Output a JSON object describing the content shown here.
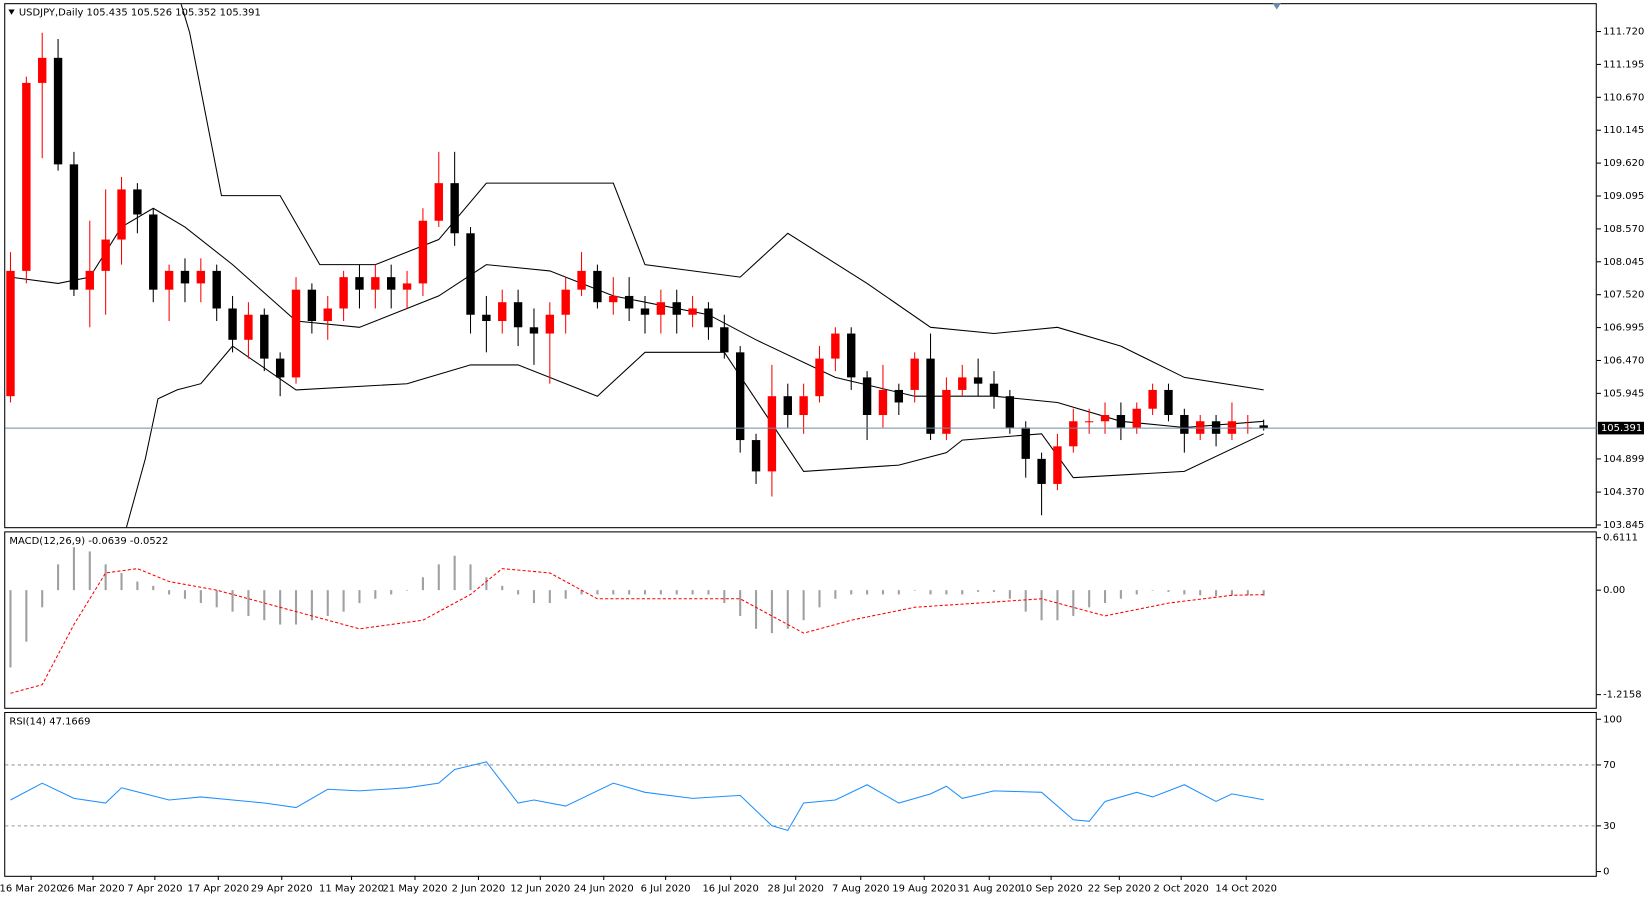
{
  "chart_data": [
    {
      "type": "candlestick",
      "title": "USDJPY,Daily  105.435 105.526 105.352 105.391",
      "up_color": "#ff0000",
      "down_color": "#000000",
      "open": [
        105.9,
        107.9,
        110.9,
        111.3,
        109.6,
        107.6,
        107.9,
        108.4,
        109.2,
        108.8,
        107.6,
        107.9,
        107.7,
        107.9,
        107.3,
        106.8,
        107.2,
        106.5,
        106.2,
        107.6,
        107.1,
        107.3,
        107.8,
        107.6,
        107.8,
        107.6,
        107.7,
        108.7,
        109.3,
        108.5,
        107.2,
        107.1,
        107.4,
        107.0,
        106.9,
        107.2,
        107.6,
        107.9,
        107.4,
        107.5,
        107.3,
        107.2,
        107.4,
        107.2,
        107.3,
        107.0,
        106.6,
        105.2,
        104.7,
        105.9,
        105.6,
        105.9,
        106.5,
        106.9,
        106.2,
        105.6,
        106.0,
        106.0,
        106.5,
        105.3,
        106.0,
        106.2,
        106.1,
        105.9,
        105.4,
        104.9,
        104.5,
        105.1,
        105.5,
        105.5,
        105.6,
        105.4,
        105.7,
        106.0,
        105.6,
        105.3,
        105.5,
        105.3,
        105.4,
        105.435
      ],
      "high": [
        108.2,
        111.0,
        111.7,
        111.6,
        109.8,
        108.7,
        109.2,
        109.4,
        109.3,
        108.9,
        108.0,
        108.1,
        108.1,
        108.0,
        107.5,
        107.4,
        107.3,
        106.6,
        107.8,
        107.7,
        107.5,
        107.9,
        108.0,
        108.0,
        108.0,
        107.9,
        108.9,
        109.8,
        109.8,
        108.6,
        107.5,
        107.6,
        107.6,
        107.3,
        107.4,
        107.8,
        108.2,
        108.0,
        107.8,
        107.8,
        107.5,
        107.6,
        107.6,
        107.5,
        107.4,
        107.2,
        106.7,
        105.3,
        106.4,
        106.1,
        106.1,
        106.7,
        107.0,
        107.0,
        106.3,
        106.4,
        106.1,
        106.6,
        106.9,
        106.2,
        106.4,
        106.5,
        106.3,
        106.0,
        105.5,
        105.0,
        105.3,
        105.7,
        105.7,
        105.8,
        105.8,
        105.8,
        106.1,
        106.1,
        105.7,
        105.6,
        105.6,
        105.8,
        105.6,
        105.526
      ],
      "low": [
        105.8,
        107.7,
        109.7,
        109.5,
        107.5,
        107.0,
        107.2,
        108.0,
        108.5,
        107.4,
        107.1,
        107.4,
        107.4,
        107.1,
        106.6,
        106.5,
        106.3,
        105.9,
        106.1,
        106.9,
        106.8,
        107.1,
        107.3,
        107.3,
        107.3,
        107.3,
        107.5,
        108.6,
        108.3,
        106.9,
        106.6,
        106.9,
        106.7,
        106.4,
        106.1,
        106.9,
        107.5,
        107.3,
        107.2,
        107.1,
        106.9,
        106.9,
        106.9,
        107.0,
        106.8,
        106.5,
        105.0,
        104.5,
        104.3,
        105.4,
        105.3,
        105.8,
        106.3,
        106.0,
        105.2,
        105.4,
        105.6,
        105.8,
        105.2,
        105.2,
        105.9,
        105.9,
        105.7,
        105.3,
        104.6,
        104.0,
        104.4,
        105.0,
        105.3,
        105.3,
        105.2,
        105.3,
        105.6,
        105.5,
        105.0,
        105.2,
        105.1,
        105.2,
        105.3,
        105.352
      ],
      "close": [
        107.9,
        110.9,
        111.3,
        109.6,
        107.6,
        107.9,
        108.4,
        109.2,
        108.8,
        107.6,
        107.9,
        107.7,
        107.9,
        107.3,
        106.8,
        107.2,
        106.5,
        106.2,
        107.6,
        107.1,
        107.3,
        107.8,
        107.6,
        107.8,
        107.6,
        107.7,
        108.7,
        109.3,
        108.5,
        107.2,
        107.1,
        107.4,
        107.0,
        106.9,
        107.2,
        107.6,
        107.9,
        107.4,
        107.5,
        107.3,
        107.2,
        107.4,
        107.2,
        107.3,
        107.0,
        106.6,
        105.2,
        104.7,
        105.9,
        105.6,
        105.9,
        106.5,
        106.9,
        106.2,
        105.6,
        106.0,
        105.8,
        106.5,
        105.3,
        106.0,
        106.2,
        106.1,
        105.9,
        105.4,
        104.9,
        104.5,
        105.1,
        105.5,
        105.5,
        105.6,
        105.4,
        105.7,
        106.0,
        105.6,
        105.3,
        105.5,
        105.3,
        105.5,
        105.4,
        105.391
      ],
      "bands": [
        {
          "color": "#000000",
          "x": [
            10,
            11.3,
            13.3,
            17,
            19.5,
            23,
            27,
            30,
            38,
            40,
            46,
            49,
            54,
            58,
            62,
            66,
            70,
            74,
            79
          ],
          "values": [
            112.8,
            111.7,
            109.1,
            109.1,
            108.0,
            108.0,
            108.4,
            109.3,
            109.3,
            108.0,
            107.8,
            108.5,
            107.7,
            107.0,
            106.9,
            107.0,
            106.7,
            106.2,
            106.0
          ]
        },
        {
          "color": "#000000",
          "x": [
            0,
            3,
            5,
            7,
            9,
            11,
            14,
            18,
            22,
            27,
            30,
            34,
            38,
            44,
            47,
            52,
            57,
            62,
            66,
            70,
            74,
            79
          ],
          "values": [
            107.8,
            107.7,
            107.8,
            108.6,
            108.9,
            108.6,
            108.0,
            107.1,
            107.0,
            107.5,
            108.0,
            107.9,
            107.5,
            107.2,
            106.8,
            106.2,
            105.9,
            105.9,
            105.8,
            105.5,
            105.4,
            105.5
          ]
        },
        {
          "color": "#000000",
          "x": [
            7.3,
            8.5,
            9.3,
            10.5,
            12,
            14,
            18,
            25,
            29,
            32,
            37,
            40,
            45,
            50,
            56,
            59,
            60,
            65,
            67,
            74,
            79
          ],
          "values": [
            103.8,
            104.9,
            105.86,
            106.0,
            106.1,
            106.7,
            106.0,
            106.1,
            106.4,
            106.4,
            105.9,
            106.6,
            106.6,
            104.7,
            104.8,
            105.0,
            105.2,
            105.3,
            104.6,
            104.7,
            105.3
          ]
        }
      ],
      "last_price": 105.391,
      "last_price_color": "#6d8aa8",
      "xlim": [
        -0.33,
        100
      ],
      "ylim": [
        103.81,
        112.156
      ],
      "yticks": [
        {
          "value": 103.845,
          "label": "103.845"
        },
        {
          "value": 104.37,
          "label": "104.370"
        },
        {
          "value": 104.899,
          "label": "104.899"
        },
        {
          "value": 105.945,
          "label": "105.945"
        },
        {
          "value": 106.47,
          "label": "106.470"
        },
        {
          "value": 106.995,
          "label": "106.995"
        },
        {
          "value": 107.52,
          "label": "107.520"
        },
        {
          "value": 108.045,
          "label": "108.045"
        },
        {
          "value": 108.57,
          "label": "108.570"
        },
        {
          "value": 109.095,
          "label": "109.095"
        },
        {
          "value": 109.62,
          "label": "109.620"
        },
        {
          "value": 110.145,
          "label": "110.145"
        },
        {
          "value": 110.67,
          "label": "110.670"
        },
        {
          "value": 111.195,
          "label": "111.195"
        },
        {
          "value": 111.72,
          "label": "111.720"
        }
      ]
    },
    {
      "type": "bar",
      "title": "MACD(12,26,9) -0.0639 -0.0522",
      "color": "#a0a0a0",
      "values": [
        -0.9,
        -0.6,
        -0.2,
        0.3,
        0.5,
        0.45,
        0.3,
        0.2,
        0.1,
        0.05,
        -0.05,
        -0.1,
        -0.15,
        -0.2,
        -0.25,
        -0.3,
        -0.35,
        -0.4,
        -0.4,
        -0.35,
        -0.3,
        -0.25,
        -0.15,
        -0.1,
        -0.05,
        0.0,
        0.15,
        0.3,
        0.4,
        0.3,
        0.15,
        0.05,
        -0.05,
        -0.15,
        -0.15,
        -0.1,
        -0.05,
        -0.05,
        -0.05,
        -0.05,
        -0.05,
        -0.05,
        -0.05,
        -0.05,
        -0.05,
        -0.15,
        -0.3,
        -0.45,
        -0.5,
        -0.45,
        -0.35,
        -0.2,
        -0.1,
        -0.05,
        -0.05,
        -0.05,
        -0.05,
        0.0,
        -0.05,
        -0.05,
        -0.05,
        -0.02,
        -0.02,
        -0.1,
        -0.25,
        -0.35,
        -0.35,
        -0.3,
        -0.2,
        -0.15,
        -0.1,
        -0.05,
        0.0,
        -0.02,
        -0.05,
        -0.06,
        -0.07,
        -0.06,
        -0.06,
        -0.0639
      ],
      "signal": {
        "color": "#ff0000",
        "x": [
          0,
          2,
          4,
          6,
          8,
          10,
          13,
          17,
          22,
          26,
          29,
          31,
          34,
          37,
          42,
          46,
          50,
          53,
          57,
          61,
          65,
          69,
          73,
          77,
          79
        ],
        "values": [
          -1.2,
          -1.1,
          -0.4,
          0.2,
          0.25,
          0.1,
          0.0,
          -0.2,
          -0.45,
          -0.35,
          -0.05,
          0.25,
          0.2,
          -0.1,
          -0.1,
          -0.1,
          -0.5,
          -0.35,
          -0.2,
          -0.15,
          -0.1,
          -0.3,
          -0.15,
          -0.06,
          -0.0522
        ]
      },
      "xlim": [
        -0.33,
        100
      ],
      "ylim": [
        -1.369,
        0.672
      ],
      "yticks": [
        -1.2158,
        {
          "value": 0,
          "label": "0.00"
        },
        0.6111
      ]
    },
    {
      "type": "line",
      "title": "RSI(14) 47.1669",
      "color": "#1e90ff",
      "x": [
        0,
        2,
        4,
        6,
        7,
        10,
        12,
        16,
        18,
        20,
        22,
        25,
        27,
        28,
        30,
        32,
        33,
        35,
        38,
        40,
        43,
        46,
        48,
        49,
        50,
        52,
        54,
        56,
        58,
        59,
        60,
        62,
        65,
        67,
        68,
        69,
        71,
        72,
        74,
        76,
        77,
        79
      ],
      "values": [
        47,
        58,
        48,
        45,
        55,
        47,
        49,
        45,
        42,
        54,
        53,
        55,
        58,
        67,
        72,
        45,
        47,
        43,
        58,
        52,
        48,
        50,
        30,
        27,
        45,
        47,
        57,
        45,
        51,
        56,
        48,
        53,
        52,
        34,
        33,
        46,
        52,
        49,
        57,
        46,
        51,
        47.1669
      ],
      "levels": [
        30,
        70
      ],
      "xlim": [
        -0.33,
        100
      ],
      "ylim": [
        -2.8,
        104.1
      ],
      "yticks": [
        0,
        30,
        70,
        100
      ],
      "xticks": [
        {
          "value": 1.3,
          "label": "16 Mar 2020"
        },
        {
          "value": 5.2,
          "label": "26 Mar 2020"
        },
        {
          "value": 9.1,
          "label": "7 Apr 2020"
        },
        {
          "value": 13.1,
          "label": "17 Apr 2020"
        },
        {
          "value": 17.1,
          "label": "29 Apr 2020"
        },
        {
          "value": 21.5,
          "label": "11 May 2020"
        },
        {
          "value": 25.5,
          "label": "21 May 2020"
        },
        {
          "value": 29.5,
          "label": "2 Jun 2020"
        },
        {
          "value": 33.4,
          "label": "12 Jun 2020"
        },
        {
          "value": 37.4,
          "label": "24 Jun 2020"
        },
        {
          "value": 41.3,
          "label": "6 Jul 2020"
        },
        {
          "value": 45.4,
          "label": "16 Jul 2020"
        },
        {
          "value": 49.5,
          "label": "28 Jul 2020"
        },
        {
          "value": 53.6,
          "label": "7 Aug 2020"
        },
        {
          "value": 57.6,
          "label": "19 Aug 2020"
        },
        {
          "value": 61.7,
          "label": "31 Aug 2020"
        },
        {
          "value": 65.6,
          "label": "10 Sep 2020"
        },
        {
          "value": 69.9,
          "label": "22 Sep 2020"
        },
        {
          "value": 73.8,
          "label": "2 Oct 2020"
        },
        {
          "value": 77.9,
          "label": "14 Oct 2020"
        }
      ]
    }
  ]
}
